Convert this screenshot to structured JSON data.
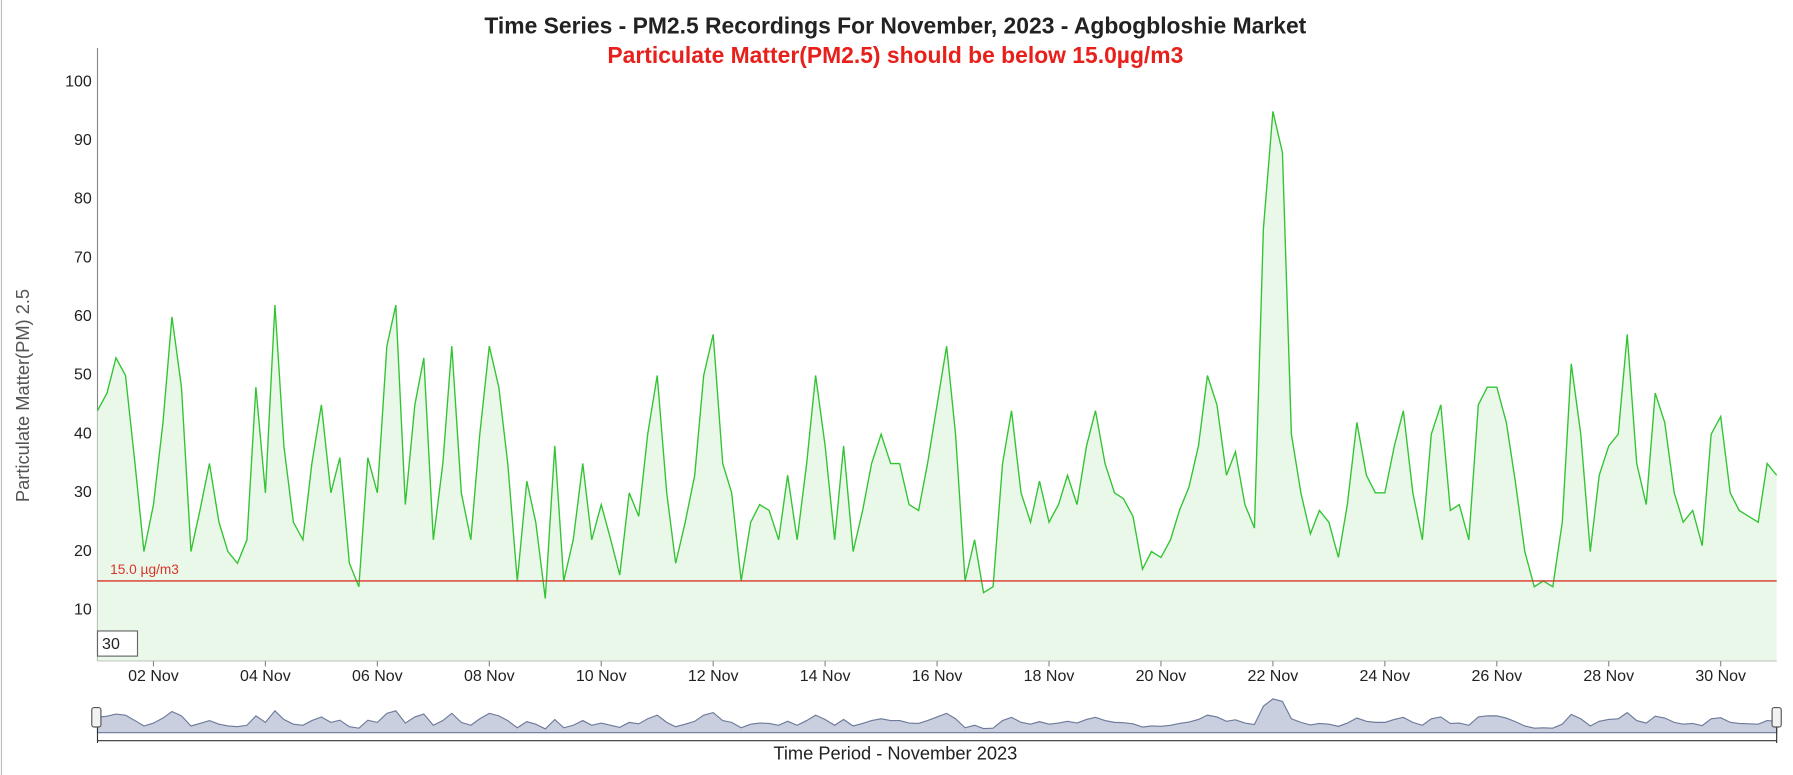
{
  "chart_data": {
    "type": "area",
    "title": "Time Series - PM2.5 Recordings For November, 2023 - Agbogbloshie Market",
    "subtitle": "Particulate Matter(PM2.5) should be below 15.0µg/m3",
    "y_label": "Particulate Matter(PM) 2.5",
    "x_label": "Time Period - November 2023",
    "range_input": "30",
    "threshold": {
      "value": 15,
      "label": "15.0 µg/m3",
      "color": "#d9342b"
    },
    "x": [
      1,
      1.17,
      1.33,
      1.5,
      1.67,
      1.83,
      2,
      2.17,
      2.33,
      2.5,
      2.67,
      2.83,
      3,
      3.17,
      3.33,
      3.5,
      3.67,
      3.83,
      4,
      4.17,
      4.33,
      4.5,
      4.67,
      4.83,
      5,
      5.17,
      5.33,
      5.5,
      5.67,
      5.83,
      6,
      6.17,
      6.33,
      6.5,
      6.67,
      6.83,
      7,
      7.17,
      7.33,
      7.5,
      7.67,
      7.83,
      8,
      8.17,
      8.33,
      8.5,
      8.67,
      8.83,
      9,
      9.17,
      9.33,
      9.5,
      9.67,
      9.83,
      10,
      10.17,
      10.33,
      10.5,
      10.67,
      10.83,
      11,
      11.17,
      11.33,
      11.5,
      11.67,
      11.83,
      12,
      12.17,
      12.33,
      12.5,
      12.67,
      12.83,
      13,
      13.17,
      13.33,
      13.5,
      13.67,
      13.83,
      14,
      14.17,
      14.33,
      14.5,
      14.67,
      14.83,
      15,
      15.17,
      15.33,
      15.5,
      15.67,
      15.83,
      16,
      16.17,
      16.33,
      16.5,
      16.67,
      16.83,
      17,
      17.17,
      17.33,
      17.5,
      17.67,
      17.83,
      18,
      18.17,
      18.33,
      18.5,
      18.67,
      18.83,
      19,
      19.17,
      19.33,
      19.5,
      19.67,
      19.83,
      20,
      20.17,
      20.33,
      20.5,
      20.67,
      20.83,
      21,
      21.17,
      21.33,
      21.5,
      21.67,
      21.83,
      22,
      22.17,
      22.33,
      22.5,
      22.67,
      22.83,
      23,
      23.17,
      23.33,
      23.5,
      23.67,
      23.83,
      24,
      24.17,
      24.33,
      24.5,
      24.67,
      24.83,
      25,
      25.17,
      25.33,
      25.5,
      25.67,
      25.83,
      26,
      26.17,
      26.33,
      26.5,
      26.67,
      26.83,
      27,
      27.17,
      27.33,
      27.5,
      27.67,
      27.83,
      28,
      28.17,
      28.33,
      28.5,
      28.67,
      28.83,
      29,
      29.17,
      29.33,
      29.5,
      29.67,
      29.83,
      30,
      30.17,
      30.33,
      30.5,
      30.67,
      30.83,
      31
    ],
    "series": [
      {
        "color": "#33c433",
        "fill": "#eaf8ea",
        "values": [
          44,
          47,
          53,
          50,
          35,
          20,
          28,
          42,
          60,
          48,
          20,
          27,
          35,
          25,
          20,
          18,
          22,
          48,
          30,
          62,
          38,
          25,
          22,
          35,
          45,
          30,
          36,
          18,
          14,
          36,
          30,
          55,
          62,
          28,
          45,
          53,
          22,
          35,
          55,
          30,
          22,
          40,
          55,
          48,
          35,
          15,
          32,
          25,
          12,
          38,
          15,
          22,
          35,
          22,
          28,
          22,
          16,
          30,
          26,
          40,
          50,
          30,
          18,
          25,
          33,
          50,
          57,
          35,
          30,
          15,
          25,
          28,
          27,
          22,
          33,
          22,
          35,
          50,
          38,
          22,
          38,
          20,
          27,
          35,
          40,
          35,
          35,
          28,
          27,
          35,
          45,
          55,
          40,
          15,
          22,
          13,
          14,
          35,
          44,
          30,
          25,
          32,
          25,
          28,
          33,
          28,
          38,
          44,
          35,
          30,
          29,
          26,
          17,
          20,
          19,
          22,
          27,
          31,
          38,
          50,
          45,
          33,
          37,
          28,
          24,
          75,
          95,
          88,
          40,
          30,
          23,
          27,
          25,
          19,
          28,
          42,
          33,
          30,
          30,
          38,
          44,
          30,
          22,
          40,
          45,
          27,
          28,
          22,
          45,
          48,
          48,
          42,
          32,
          20,
          14,
          15,
          14,
          25,
          52,
          40,
          20,
          33,
          38,
          40,
          57,
          35,
          28,
          47,
          42,
          30,
          25,
          27,
          21,
          40,
          43,
          30,
          27,
          26,
          25,
          35,
          33
        ]
      }
    ],
    "xlim": [
      1,
      31
    ],
    "xticks": [
      {
        "value": 2,
        "label": "02 Nov"
      },
      {
        "value": 4,
        "label": "04 Nov"
      },
      {
        "value": 6,
        "label": "06 Nov"
      },
      {
        "value": 8,
        "label": "08 Nov"
      },
      {
        "value": 10,
        "label": "10 Nov"
      },
      {
        "value": 12,
        "label": "12 Nov"
      },
      {
        "value": 14,
        "label": "14 Nov"
      },
      {
        "value": 16,
        "label": "16 Nov"
      },
      {
        "value": 18,
        "label": "18 Nov"
      },
      {
        "value": 20,
        "label": "20 Nov"
      },
      {
        "value": 22,
        "label": "22 Nov"
      },
      {
        "value": 24,
        "label": "24 Nov"
      },
      {
        "value": 26,
        "label": "26 Nov"
      },
      {
        "value": 28,
        "label": "28 Nov"
      },
      {
        "value": 30,
        "label": "30 Nov"
      }
    ],
    "ylim": [
      1.4,
      105.8
    ],
    "yticks": [
      10,
      20,
      30,
      40,
      50,
      60,
      70,
      80,
      90,
      100
    ],
    "grid": false,
    "navigator": true
  }
}
